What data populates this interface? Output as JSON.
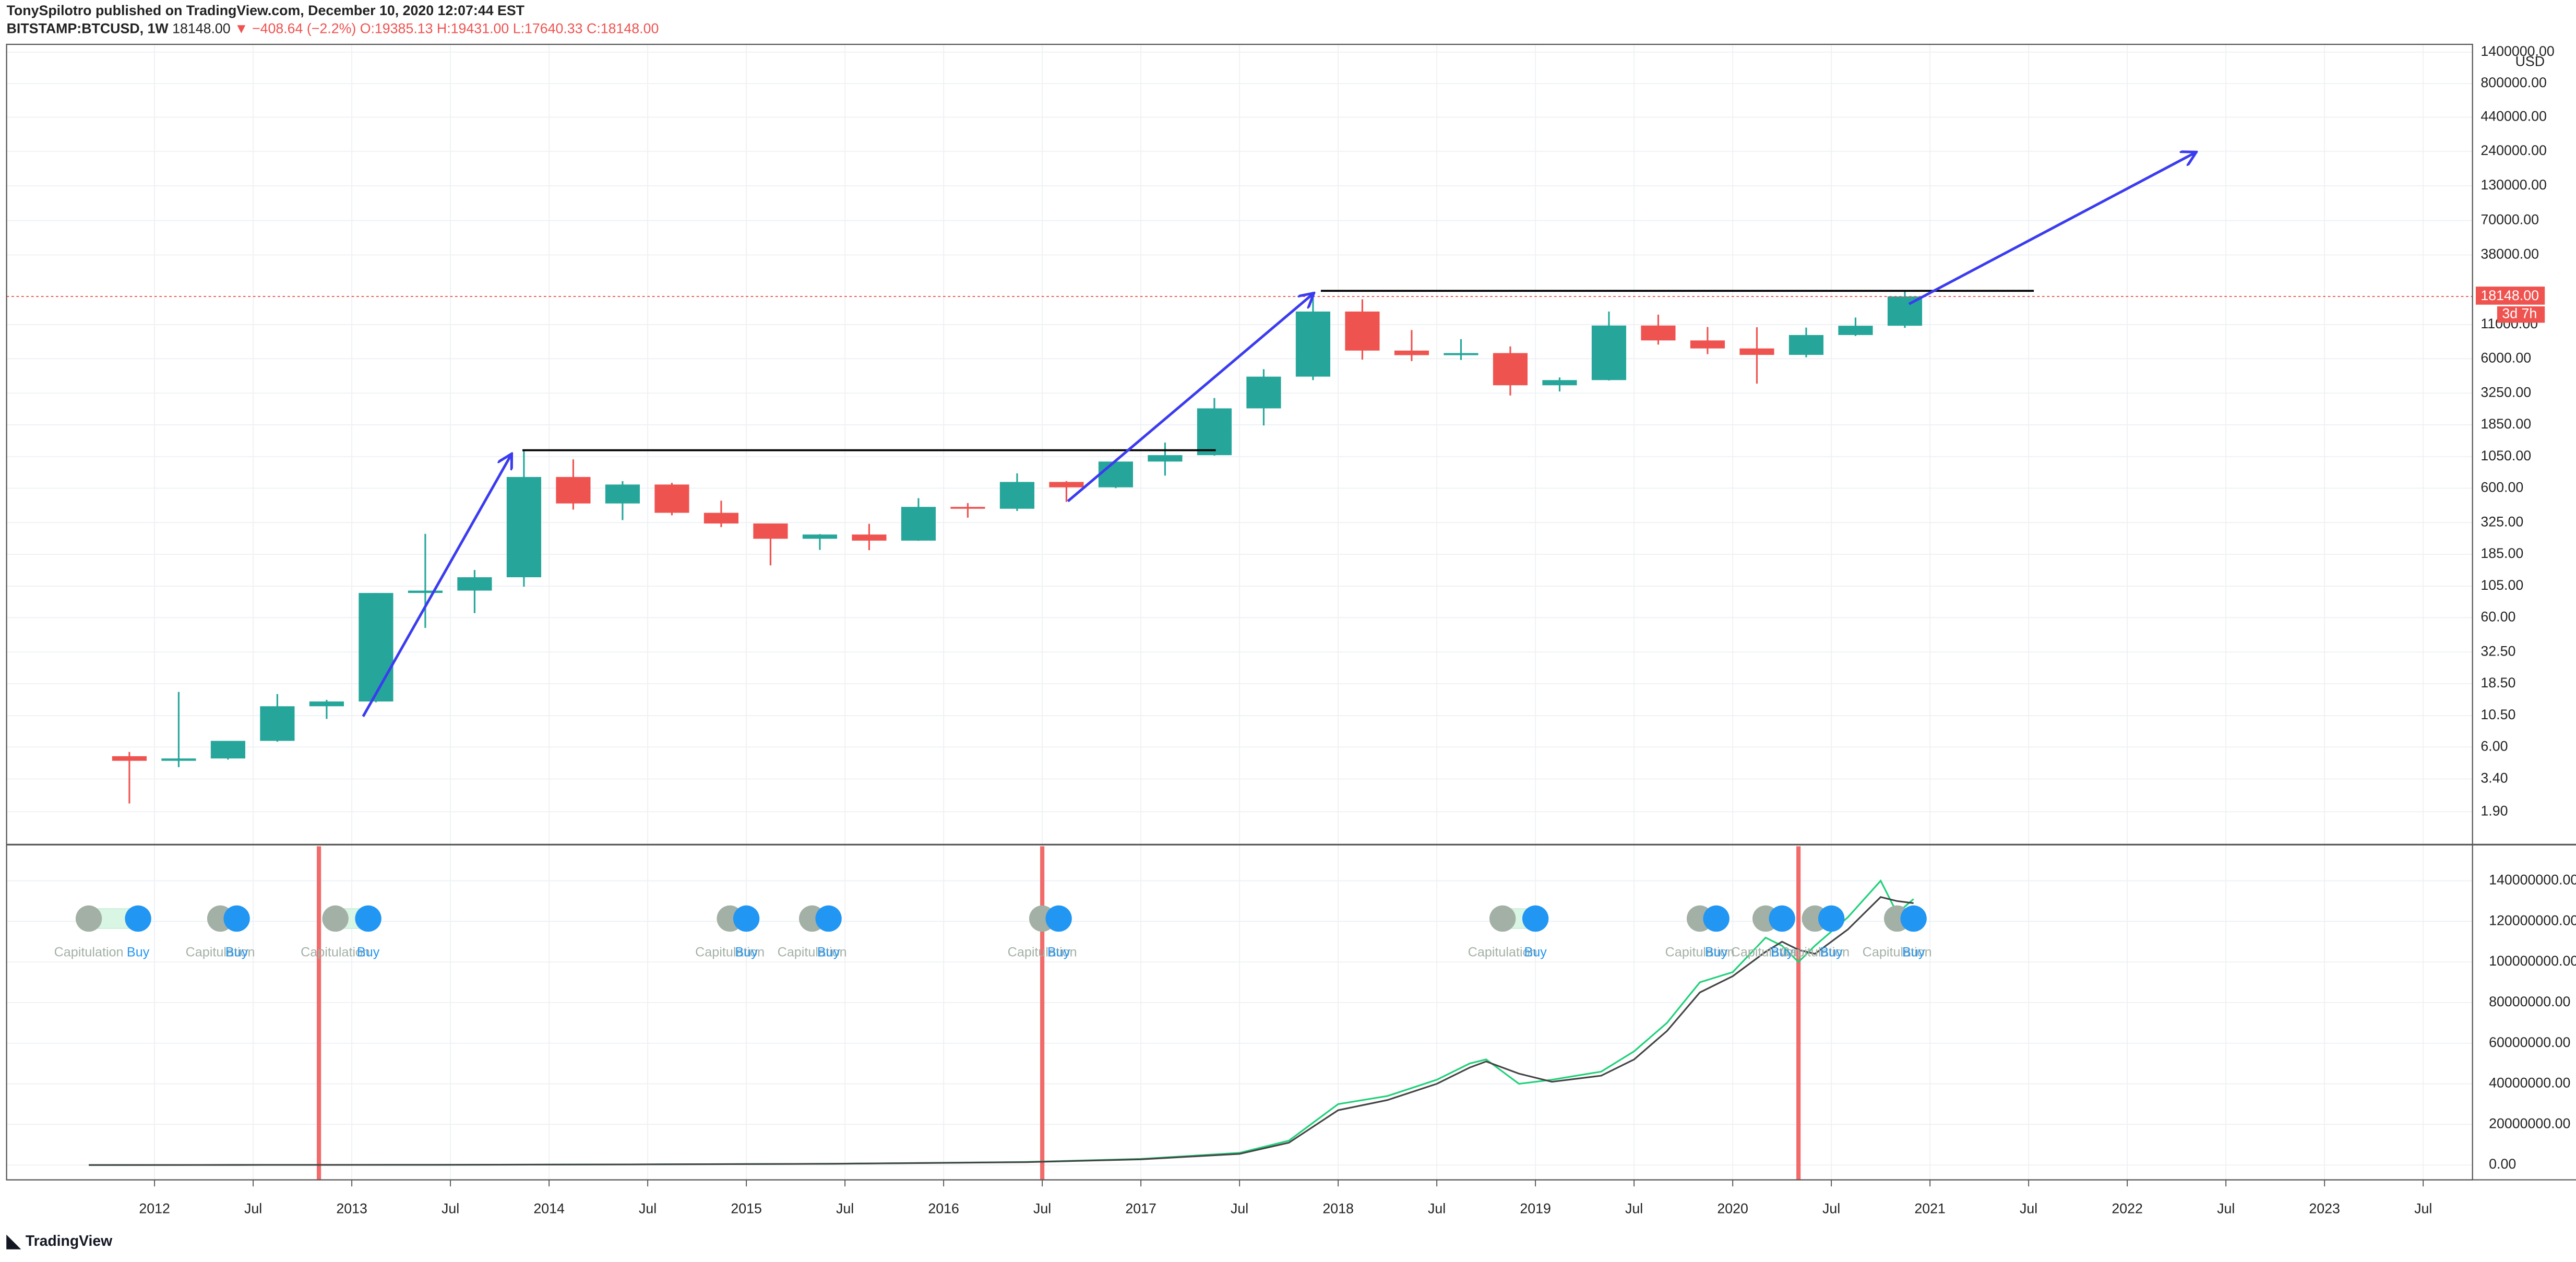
{
  "header": {
    "author_line": "TonySpilotro published on TradingView.com, December 10, 2020 12:07:44 EST",
    "symbol": "BITSTAMP:BTCUSD, 1W",
    "last": "18148.00",
    "change": "▼ −408.64 (−2.2%)",
    "open": "O:19385.13",
    "high": "H:19431.00",
    "low": "L:17640.33",
    "close": "C:18148.00"
  },
  "footer": {
    "logo": "TradingView"
  },
  "chart_data": [
    {
      "type": "candlestick",
      "log": true,
      "grid": true,
      "unit": "USD",
      "up_color": "#26a69a",
      "down_color": "#ef5350",
      "x": [
        "2011-10",
        "2012-01",
        "2012-04",
        "2012-07",
        "2012-10",
        "2013-01",
        "2013-04",
        "2013-07",
        "2013-10",
        "2014-01",
        "2014-04",
        "2014-07",
        "2014-10",
        "2015-01",
        "2015-04",
        "2015-07",
        "2015-10",
        "2016-01",
        "2016-04",
        "2016-07",
        "2016-10",
        "2017-01",
        "2017-04",
        "2017-07",
        "2017-10",
        "2018-01",
        "2018-04",
        "2018-07",
        "2018-10",
        "2019-01",
        "2019-04",
        "2019-07",
        "2019-10",
        "2020-01",
        "2020-04",
        "2020-07",
        "2020-10"
      ],
      "open": [
        5.1,
        4.7,
        4.9,
        6.7,
        12.4,
        13.5,
        93,
        97,
        123,
        732,
        457,
        640,
        387,
        320,
        244,
        263,
        236,
        430,
        416,
        670,
        609,
        963,
        1079,
        2480,
        4360,
        13880,
        6930,
        6390,
        6630,
        3740,
        4100,
        10820,
        8300,
        7200,
        6420,
        9140,
        10780
      ],
      "high": [
        5.5,
        16,
        6.7,
        15.4,
        13.9,
        93,
        266,
        140,
        1160,
        1000,
        680,
        660,
        480,
        320,
        265,
        318,
        502,
        460,
        780,
        680,
        975,
        1350,
        2980,
        4980,
        19666,
        17250,
        9990,
        8500,
        7460,
        4300,
        13880,
        13130,
        10540,
        10500,
        10430,
        12470,
        19870
      ],
      "low": [
        2.2,
        4.2,
        4.8,
        6.6,
        9.9,
        13.3,
        50,
        65,
        104,
        410,
        340,
        370,
        300,
        152,
        200,
        199,
        235,
        355,
        400,
        470,
        600,
        750,
        1070,
        1830,
        4100,
        5900,
        5750,
        5860,
        3120,
        3350,
        4070,
        7710,
        6510,
        3850,
        6150,
        8980,
        10370
      ],
      "close": [
        4.7,
        4.9,
        6.7,
        12.4,
        13.5,
        93,
        97,
        123,
        732,
        457,
        640,
        387,
        320,
        244,
        263,
        236,
        430,
        416,
        670,
        609,
        963,
        1079,
        2480,
        4360,
        13880,
        6930,
        6390,
        6630,
        3740,
        4100,
        10820,
        8300,
        7200,
        6420,
        9140,
        10780,
        18148
      ],
      "xlim": [
        "2011-04",
        "2023-10"
      ],
      "ylim": [
        1.09,
        1607000
      ],
      "yticks": [
        {
          "value": 1.9,
          "label": "1.90"
        },
        {
          "value": 3.4,
          "label": "3.40"
        },
        {
          "value": 6,
          "label": "6.00"
        },
        {
          "value": 10.5,
          "label": "10.50"
        },
        {
          "value": 18.5,
          "label": "18.50"
        },
        {
          "value": 32.5,
          "label": "32.50"
        },
        {
          "value": 60,
          "label": "60.00"
        },
        {
          "value": 105,
          "label": "105.00"
        },
        {
          "value": 185,
          "label": "185.00"
        },
        {
          "value": 325,
          "label": "325.00"
        },
        {
          "value": 600,
          "label": "600.00"
        },
        {
          "value": 1050,
          "label": "1050.00"
        },
        {
          "value": 1850,
          "label": "1850.00"
        },
        {
          "value": 3250,
          "label": "3250.00"
        },
        {
          "value": 6000,
          "label": "6000.00"
        },
        {
          "value": 11000,
          "label": "11000.00"
        },
        {
          "value": 38000,
          "label": "38000.00"
        },
        {
          "value": 70000,
          "label": "70000.00"
        },
        {
          "value": 130000,
          "label": "130000.00"
        },
        {
          "value": 240000,
          "label": "240000.00"
        },
        {
          "value": 440000,
          "label": "440000.00"
        },
        {
          "value": 800000,
          "label": "800000.00"
        },
        {
          "value": 1400000,
          "label": "1400000.00"
        }
      ],
      "last_price": {
        "value": 18148,
        "label": "18148.00"
      },
      "countdown": "3d 7h",
      "last_color": "#ef5350"
    },
    {
      "type": "line",
      "grid": true,
      "x": [
        "2011-09",
        "2012-06",
        "2013-06",
        "2014-06",
        "2015-06",
        "2016-06",
        "2017-01",
        "2017-07",
        "2017-10",
        "2018-01",
        "2018-04",
        "2018-07",
        "2018-09",
        "2018-10",
        "2018-12",
        "2019-02",
        "2019-05",
        "2019-07",
        "2019-09",
        "2019-11",
        "2020-01",
        "2020-03",
        "2020-04",
        "2020-05",
        "2020-06",
        "2020-08",
        "2020-10",
        "2020-11",
        "2020-12"
      ],
      "series": [
        {
          "color": "#1fd17a",
          "values": [
            0,
            50000,
            100000,
            300000,
            600000,
            1500000,
            3000000,
            6000000,
            12000000,
            30000000,
            34000000,
            42000000,
            50000000,
            52000000,
            40000000,
            42000000,
            46000000,
            56000000,
            70000000,
            90000000,
            95000000,
            112000000,
            108000000,
            100000000,
            108000000,
            122000000,
            140000000,
            124000000,
            131000000
          ]
        },
        {
          "color": "#444444",
          "values": [
            0,
            50000,
            100000,
            300000,
            600000,
            1400000,
            2800000,
            5500000,
            11000000,
            27000000,
            32000000,
            40000000,
            48000000,
            51000000,
            45000000,
            41000000,
            44000000,
            52000000,
            66000000,
            85000000,
            93000000,
            105000000,
            110000000,
            106000000,
            104000000,
            116000000,
            132000000,
            130000000,
            129000000
          ]
        }
      ],
      "signals": [
        {
          "label": "Capitulation",
          "x": "2011-09",
          "color": "#a3b0a5"
        },
        {
          "label": "Buy",
          "x": "2011-12",
          "color": "#2196f3"
        },
        {
          "label": "Capitulation",
          "x": "2012-05",
          "color": "#a3b0a5"
        },
        {
          "label": "Buy",
          "x": "2012-06",
          "color": "#2196f3"
        },
        {
          "label": "Capitulation",
          "x": "2012-12",
          "color": "#a3b0a5"
        },
        {
          "label": "Buy",
          "x": "2013-02",
          "color": "#2196f3"
        },
        {
          "label": "Capitulation",
          "x": "2014-12",
          "color": "#a3b0a5"
        },
        {
          "label": "Buy",
          "x": "2015-01",
          "color": "#2196f3"
        },
        {
          "label": "Capitulation",
          "x": "2015-05",
          "color": "#a3b0a5"
        },
        {
          "label": "Buy",
          "x": "2015-06",
          "color": "#2196f3"
        },
        {
          "label": "Capitulation",
          "x": "2016-07",
          "color": "#a3b0a5"
        },
        {
          "label": "Buy",
          "x": "2016-08",
          "color": "#2196f3"
        },
        {
          "label": "Capitulation",
          "x": "2018-11",
          "color": "#a3b0a5"
        },
        {
          "label": "Buy",
          "x": "2019-01",
          "color": "#2196f3"
        },
        {
          "label": "Capitulation",
          "x": "2019-11",
          "color": "#a3b0a5"
        },
        {
          "label": "Buy",
          "x": "2019-12",
          "color": "#2196f3"
        },
        {
          "label": "Capitulation",
          "x": "2020-03",
          "color": "#a3b0a5"
        },
        {
          "label": "Buy",
          "x": "2020-04",
          "color": "#2196f3"
        },
        {
          "label": "Capitulation",
          "x": "2020-06",
          "color": "#a3b0a5"
        },
        {
          "label": "Buy",
          "x": "2020-07",
          "color": "#2196f3"
        },
        {
          "label": "Capitulation",
          "x": "2020-11",
          "color": "#a3b0a5"
        },
        {
          "label": "Buy",
          "x": "2020-12",
          "color": "#2196f3"
        }
      ],
      "vlines": [
        "2012-11",
        "2016-07",
        "2020-05"
      ],
      "vline_color": "#f26b6b",
      "xlim": [
        "2011-04",
        "2023-10"
      ],
      "ylim": [
        -7300000,
        157000000
      ],
      "yticks": [
        {
          "value": 0,
          "label": "0.00"
        },
        {
          "value": 20000000,
          "label": "20000000.00"
        },
        {
          "value": 40000000,
          "label": "40000000.00"
        },
        {
          "value": 60000000,
          "label": "60000000.00"
        },
        {
          "value": 80000000,
          "label": "80000000.00"
        },
        {
          "value": 100000000,
          "label": "100000000.00"
        },
        {
          "value": 120000000,
          "label": "120000000.00"
        },
        {
          "value": 140000000,
          "label": "140000000.00"
        }
      ],
      "xticks": [
        {
          "value": "2012-01",
          "label": "2012"
        },
        {
          "value": "2012-07",
          "label": "Jul"
        },
        {
          "value": "2013-01",
          "label": "2013"
        },
        {
          "value": "2013-07",
          "label": "Jul"
        },
        {
          "value": "2014-01",
          "label": "2014"
        },
        {
          "value": "2014-07",
          "label": "Jul"
        },
        {
          "value": "2015-01",
          "label": "2015"
        },
        {
          "value": "2015-07",
          "label": "Jul"
        },
        {
          "value": "2016-01",
          "label": "2016"
        },
        {
          "value": "2016-07",
          "label": "Jul"
        },
        {
          "value": "2017-01",
          "label": "2017"
        },
        {
          "value": "2017-07",
          "label": "Jul"
        },
        {
          "value": "2018-01",
          "label": "2018"
        },
        {
          "value": "2018-07",
          "label": "Jul"
        },
        {
          "value": "2019-01",
          "label": "2019"
        },
        {
          "value": "2019-07",
          "label": "Jul"
        },
        {
          "value": "2020-01",
          "label": "2020"
        },
        {
          "value": "2020-07",
          "label": "Jul"
        },
        {
          "value": "2021-01",
          "label": "2021"
        },
        {
          "value": "2021-07",
          "label": "Jul"
        },
        {
          "value": "2022-01",
          "label": "2022"
        },
        {
          "value": "2022-07",
          "label": "Jul"
        },
        {
          "value": "2023-01",
          "label": "2023"
        },
        {
          "value": "2023-07",
          "label": "Jul"
        }
      ]
    }
  ]
}
